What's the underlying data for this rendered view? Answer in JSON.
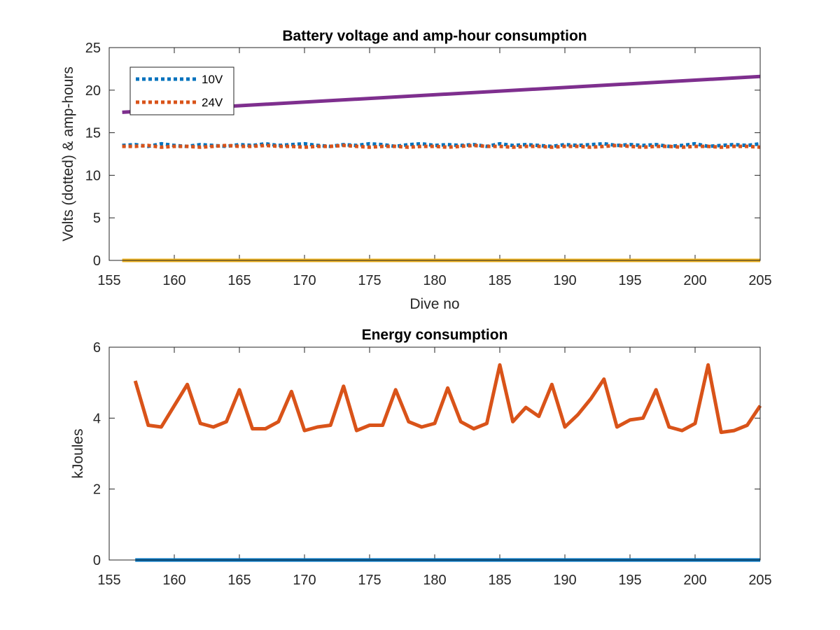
{
  "chart_data": [
    {
      "type": "line",
      "title": "Battery voltage and amp-hour consumption",
      "xlabel": "Dive no",
      "ylabel": "Volts (dotted) & amp-hours",
      "xlim": [
        155,
        205
      ],
      "ylim": [
        0,
        25
      ],
      "xticks": [
        155,
        160,
        165,
        170,
        175,
        180,
        185,
        190,
        195,
        200,
        205
      ],
      "yticks": [
        0,
        5,
        10,
        15,
        20,
        25
      ],
      "grid": false,
      "legend": {
        "placement": "top-left",
        "entries": [
          "10V",
          "24V"
        ]
      },
      "series": [
        {
          "name": "10V",
          "color": "#0072BD",
          "style": "dotted",
          "x": [
            156,
            157,
            158,
            159,
            160,
            161,
            162,
            163,
            164,
            165,
            166,
            167,
            168,
            169,
            170,
            171,
            172,
            173,
            174,
            175,
            176,
            177,
            178,
            179,
            180,
            181,
            182,
            183,
            184,
            185,
            186,
            187,
            188,
            189,
            190,
            191,
            192,
            193,
            194,
            195,
            196,
            197,
            198,
            199,
            200,
            201,
            202,
            203,
            204,
            205
          ],
          "values": [
            13.5,
            13.6,
            13.4,
            13.7,
            13.5,
            13.4,
            13.6,
            13.5,
            13.4,
            13.6,
            13.5,
            13.7,
            13.5,
            13.6,
            13.7,
            13.5,
            13.4,
            13.6,
            13.5,
            13.7,
            13.6,
            13.4,
            13.6,
            13.7,
            13.5,
            13.6,
            13.5,
            13.6,
            13.4,
            13.7,
            13.5,
            13.6,
            13.5,
            13.4,
            13.6,
            13.5,
            13.6,
            13.7,
            13.5,
            13.6,
            13.5,
            13.6,
            13.4,
            13.5,
            13.7,
            13.4,
            13.5,
            13.6,
            13.5,
            13.7
          ]
        },
        {
          "name": "24V",
          "color": "#D95319",
          "style": "dotted",
          "x": [
            156,
            157,
            158,
            159,
            160,
            161,
            162,
            163,
            164,
            165,
            166,
            167,
            168,
            169,
            170,
            171,
            172,
            173,
            174,
            175,
            176,
            177,
            178,
            179,
            180,
            181,
            182,
            183,
            184,
            185,
            186,
            187,
            188,
            189,
            190,
            191,
            192,
            193,
            194,
            195,
            196,
            197,
            198,
            199,
            200,
            201,
            202,
            203,
            204,
            205
          ],
          "values": [
            13.4,
            13.4,
            13.5,
            13.3,
            13.4,
            13.4,
            13.3,
            13.4,
            13.5,
            13.4,
            13.4,
            13.5,
            13.4,
            13.4,
            13.3,
            13.4,
            13.4,
            13.5,
            13.4,
            13.3,
            13.4,
            13.4,
            13.3,
            13.4,
            13.4,
            13.3,
            13.4,
            13.5,
            13.4,
            13.4,
            13.3,
            13.4,
            13.4,
            13.3,
            13.4,
            13.4,
            13.3,
            13.4,
            13.5,
            13.4,
            13.3,
            13.4,
            13.4,
            13.3,
            13.4,
            13.4,
            13.3,
            13.4,
            13.4,
            13.3
          ]
        },
        {
          "color": "#7E2F8E",
          "style": "solid",
          "x": [
            156,
            205
          ],
          "values": [
            17.4,
            21.6
          ]
        },
        {
          "color": "#EDB120",
          "style": "solid",
          "x": [
            156,
            205
          ],
          "values": [
            0,
            0
          ]
        }
      ]
    },
    {
      "type": "line",
      "title": "Energy consumption",
      "xlabel": "",
      "ylabel": "kJoules",
      "xlim": [
        155,
        205
      ],
      "ylim": [
        0,
        6
      ],
      "xticks": [
        155,
        160,
        165,
        170,
        175,
        180,
        185,
        190,
        195,
        200,
        205
      ],
      "yticks": [
        0,
        2,
        4,
        6
      ],
      "grid": false,
      "series": [
        {
          "color": "#D95319",
          "style": "solid",
          "x": [
            157,
            158,
            159,
            160,
            161,
            162,
            163,
            164,
            165,
            166,
            167,
            168,
            169,
            170,
            171,
            172,
            173,
            174,
            175,
            176,
            177,
            178,
            179,
            180,
            181,
            182,
            183,
            184,
            185,
            186,
            187,
            188,
            189,
            190,
            191,
            192,
            193,
            194,
            195,
            196,
            197,
            198,
            199,
            200,
            201,
            202,
            203,
            204,
            205
          ],
          "values": [
            5.05,
            3.8,
            3.75,
            4.35,
            4.95,
            3.85,
            3.75,
            3.9,
            4.8,
            3.7,
            3.7,
            3.9,
            4.75,
            3.65,
            3.75,
            3.8,
            4.9,
            3.65,
            3.8,
            3.8,
            4.8,
            3.9,
            3.75,
            3.85,
            4.85,
            3.9,
            3.7,
            3.85,
            5.5,
            3.9,
            4.3,
            4.05,
            4.95,
            3.75,
            4.1,
            4.55,
            5.1,
            3.75,
            3.95,
            4.0,
            4.8,
            3.75,
            3.65,
            3.85,
            5.5,
            3.6,
            3.65,
            3.8,
            4.35
          ]
        },
        {
          "color": "#0072BD",
          "style": "solid",
          "x": [
            157,
            205
          ],
          "values": [
            0,
            0
          ]
        }
      ]
    }
  ]
}
